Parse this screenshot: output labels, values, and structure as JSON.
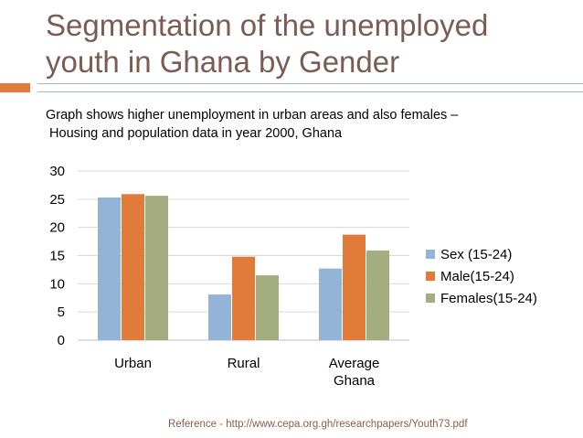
{
  "slide": {
    "title_line1": "Segmentation of the unemployed",
    "title_line2": "youth in Ghana by Gender",
    "subtitle_line1": "Graph shows higher unemployment in urban areas and also females –",
    "subtitle_line2": " Housing and population data in year 2000, Ghana",
    "reference": "Reference - http://www.cepa.org.gh/researchpapers/Youth73.pdf",
    "accent_color": "#e07b39",
    "title_color": "#7a5c52"
  },
  "chart_data": {
    "type": "bar",
    "categories": [
      "Urban",
      "Rural",
      "Average Ghana"
    ],
    "category_lines": [
      [
        "Urban"
      ],
      [
        "Rural"
      ],
      [
        "Average",
        "Ghana"
      ]
    ],
    "series": [
      {
        "name": "Sex (15-24)",
        "values": [
          25.3,
          8.1,
          12.7
        ],
        "color": "#93b3d7"
      },
      {
        "name": "Male(15-24)",
        "values": [
          25.9,
          14.8,
          18.7
        ],
        "color": "#e07b39"
      },
      {
        "name": "Females(15-24)",
        "values": [
          25.6,
          11.5,
          15.9
        ],
        "color": "#a3ad80"
      }
    ],
    "ylim": [
      0,
      30
    ],
    "yticks": [
      0,
      5,
      10,
      15,
      20,
      25,
      30
    ],
    "grid": true,
    "legend_position": "right"
  }
}
